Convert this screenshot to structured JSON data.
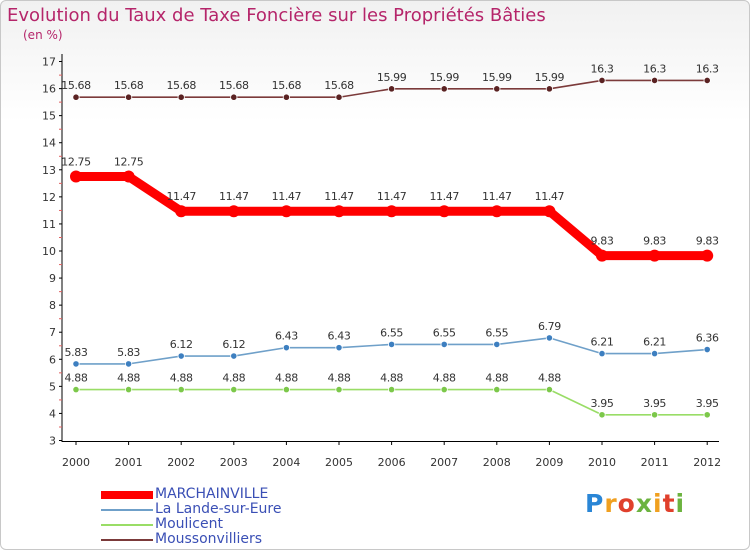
{
  "header": {
    "title": "Evolution du Taux de Taxe Foncière sur les Propriétés Bâties",
    "unit": "(en %)"
  },
  "brand": {
    "text": "Proxiti"
  },
  "chart_data": {
    "type": "line",
    "title": "Evolution du Taux de Taxe Foncière sur les Propriétés Bâties",
    "ylabel": "(en %)",
    "xlabel": "",
    "ylim": [
      3,
      17
    ],
    "yticks": [
      "3",
      "4",
      "5",
      "6",
      "7",
      "8",
      "9",
      "10",
      "11",
      "12",
      "13",
      "14",
      "15",
      "16",
      "17"
    ],
    "categories": [
      "2000",
      "2001",
      "2002",
      "2003",
      "2004",
      "2005",
      "2006",
      "2007",
      "2008",
      "2009",
      "2010",
      "2011",
      "2012"
    ],
    "grid": false,
    "legend_position": "bottom-left",
    "series": [
      {
        "name": "MARCHAINVILLE",
        "color": "#ff0000",
        "thick": true,
        "values": [
          12.75,
          12.75,
          11.47,
          11.47,
          11.47,
          11.47,
          11.47,
          11.47,
          11.47,
          11.47,
          9.83,
          9.83,
          9.83
        ],
        "labels": [
          "12.75",
          "12.75",
          "11.47",
          "11.47",
          "11.47",
          "11.47",
          "11.47",
          "11.47",
          "11.47",
          "11.47",
          "9.83",
          "9.83",
          "9.83"
        ]
      },
      {
        "name": "La Lande-sur-Eure",
        "color": "#6fa0c9",
        "marker": "#3d7fc0",
        "values": [
          5.83,
          5.83,
          6.12,
          6.12,
          6.43,
          6.43,
          6.55,
          6.55,
          6.55,
          6.79,
          6.21,
          6.21,
          6.36
        ],
        "labels": [
          "5.83",
          "5.83",
          "6.12",
          "6.12",
          "6.43",
          "6.43",
          "6.55",
          "6.55",
          "6.55",
          "6.79",
          "6.21",
          "6.21",
          "6.36"
        ]
      },
      {
        "name": "Moulicent",
        "color": "#99dd66",
        "marker": "#7cc84a",
        "values": [
          4.88,
          4.88,
          4.88,
          4.88,
          4.88,
          4.88,
          4.88,
          4.88,
          4.88,
          4.88,
          3.95,
          3.95,
          3.95
        ],
        "labels": [
          "4.88",
          "4.88",
          "4.88",
          "4.88",
          "4.88",
          "4.88",
          "4.88",
          "4.88",
          "4.88",
          "4.88",
          "3.95",
          "3.95",
          "3.95"
        ]
      },
      {
        "name": "Moussonvilliers",
        "color": "#7b3a3a",
        "marker": "#5a2222",
        "values": [
          15.68,
          15.68,
          15.68,
          15.68,
          15.68,
          15.68,
          15.99,
          15.99,
          15.99,
          15.99,
          16.3,
          16.3,
          16.3
        ],
        "labels": [
          "15.68",
          "15.68",
          "15.68",
          "15.68",
          "15.68",
          "15.68",
          "15.99",
          "15.99",
          "15.99",
          "15.99",
          "16.3",
          "16.3",
          "16.3"
        ]
      }
    ]
  }
}
